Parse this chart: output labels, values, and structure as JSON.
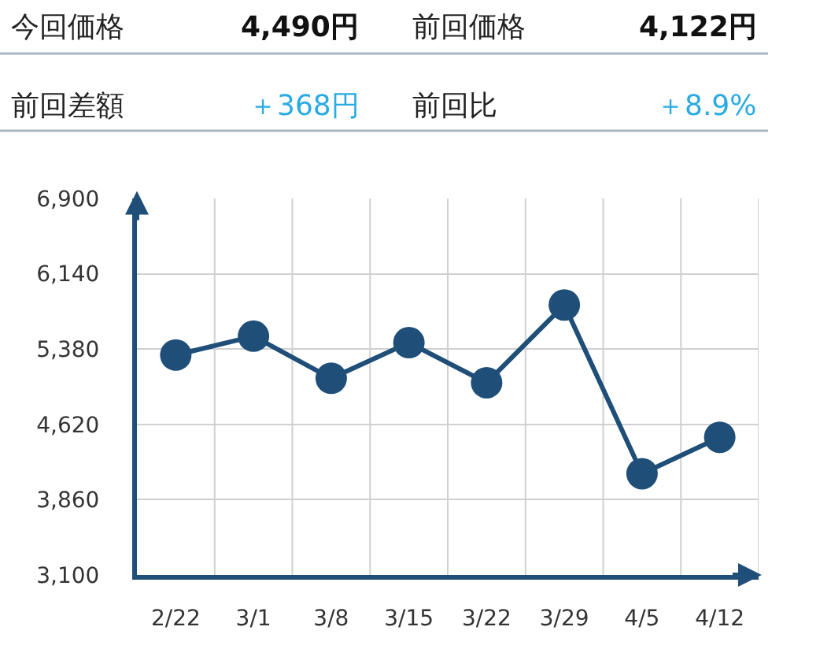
{
  "chart_data": {
    "type": "line",
    "annotations": [
      "今回価格",
      "4,490円",
      "前回価格",
      "4,122円",
      "前回差額",
      "＋368円",
      "前回比",
      "＋8.9%"
    ],
    "categories": [
      "2/22",
      "3/1",
      "3/8",
      "3/15",
      "3/22",
      "3/29",
      "4/5",
      "4/12"
    ],
    "series": [
      {
        "color": "#1f4e79",
        "values": [
          5320,
          5510,
          5085,
          5445,
          5040,
          5825,
          4122,
          4490
        ]
      }
    ],
    "ylim": [
      3100,
      6900
    ],
    "yticks": [
      {
        "value": 3100,
        "label": "3,100"
      },
      {
        "value": 3860,
        "label": "3,860"
      },
      {
        "value": 4620,
        "label": "4,620"
      },
      {
        "value": 5380,
        "label": "5,380"
      },
      {
        "value": 6140,
        "label": "6,140"
      },
      {
        "value": 6900,
        "label": "6,900"
      }
    ],
    "grid": true,
    "marker": "circle",
    "line_style": "solid",
    "legend": false
  }
}
